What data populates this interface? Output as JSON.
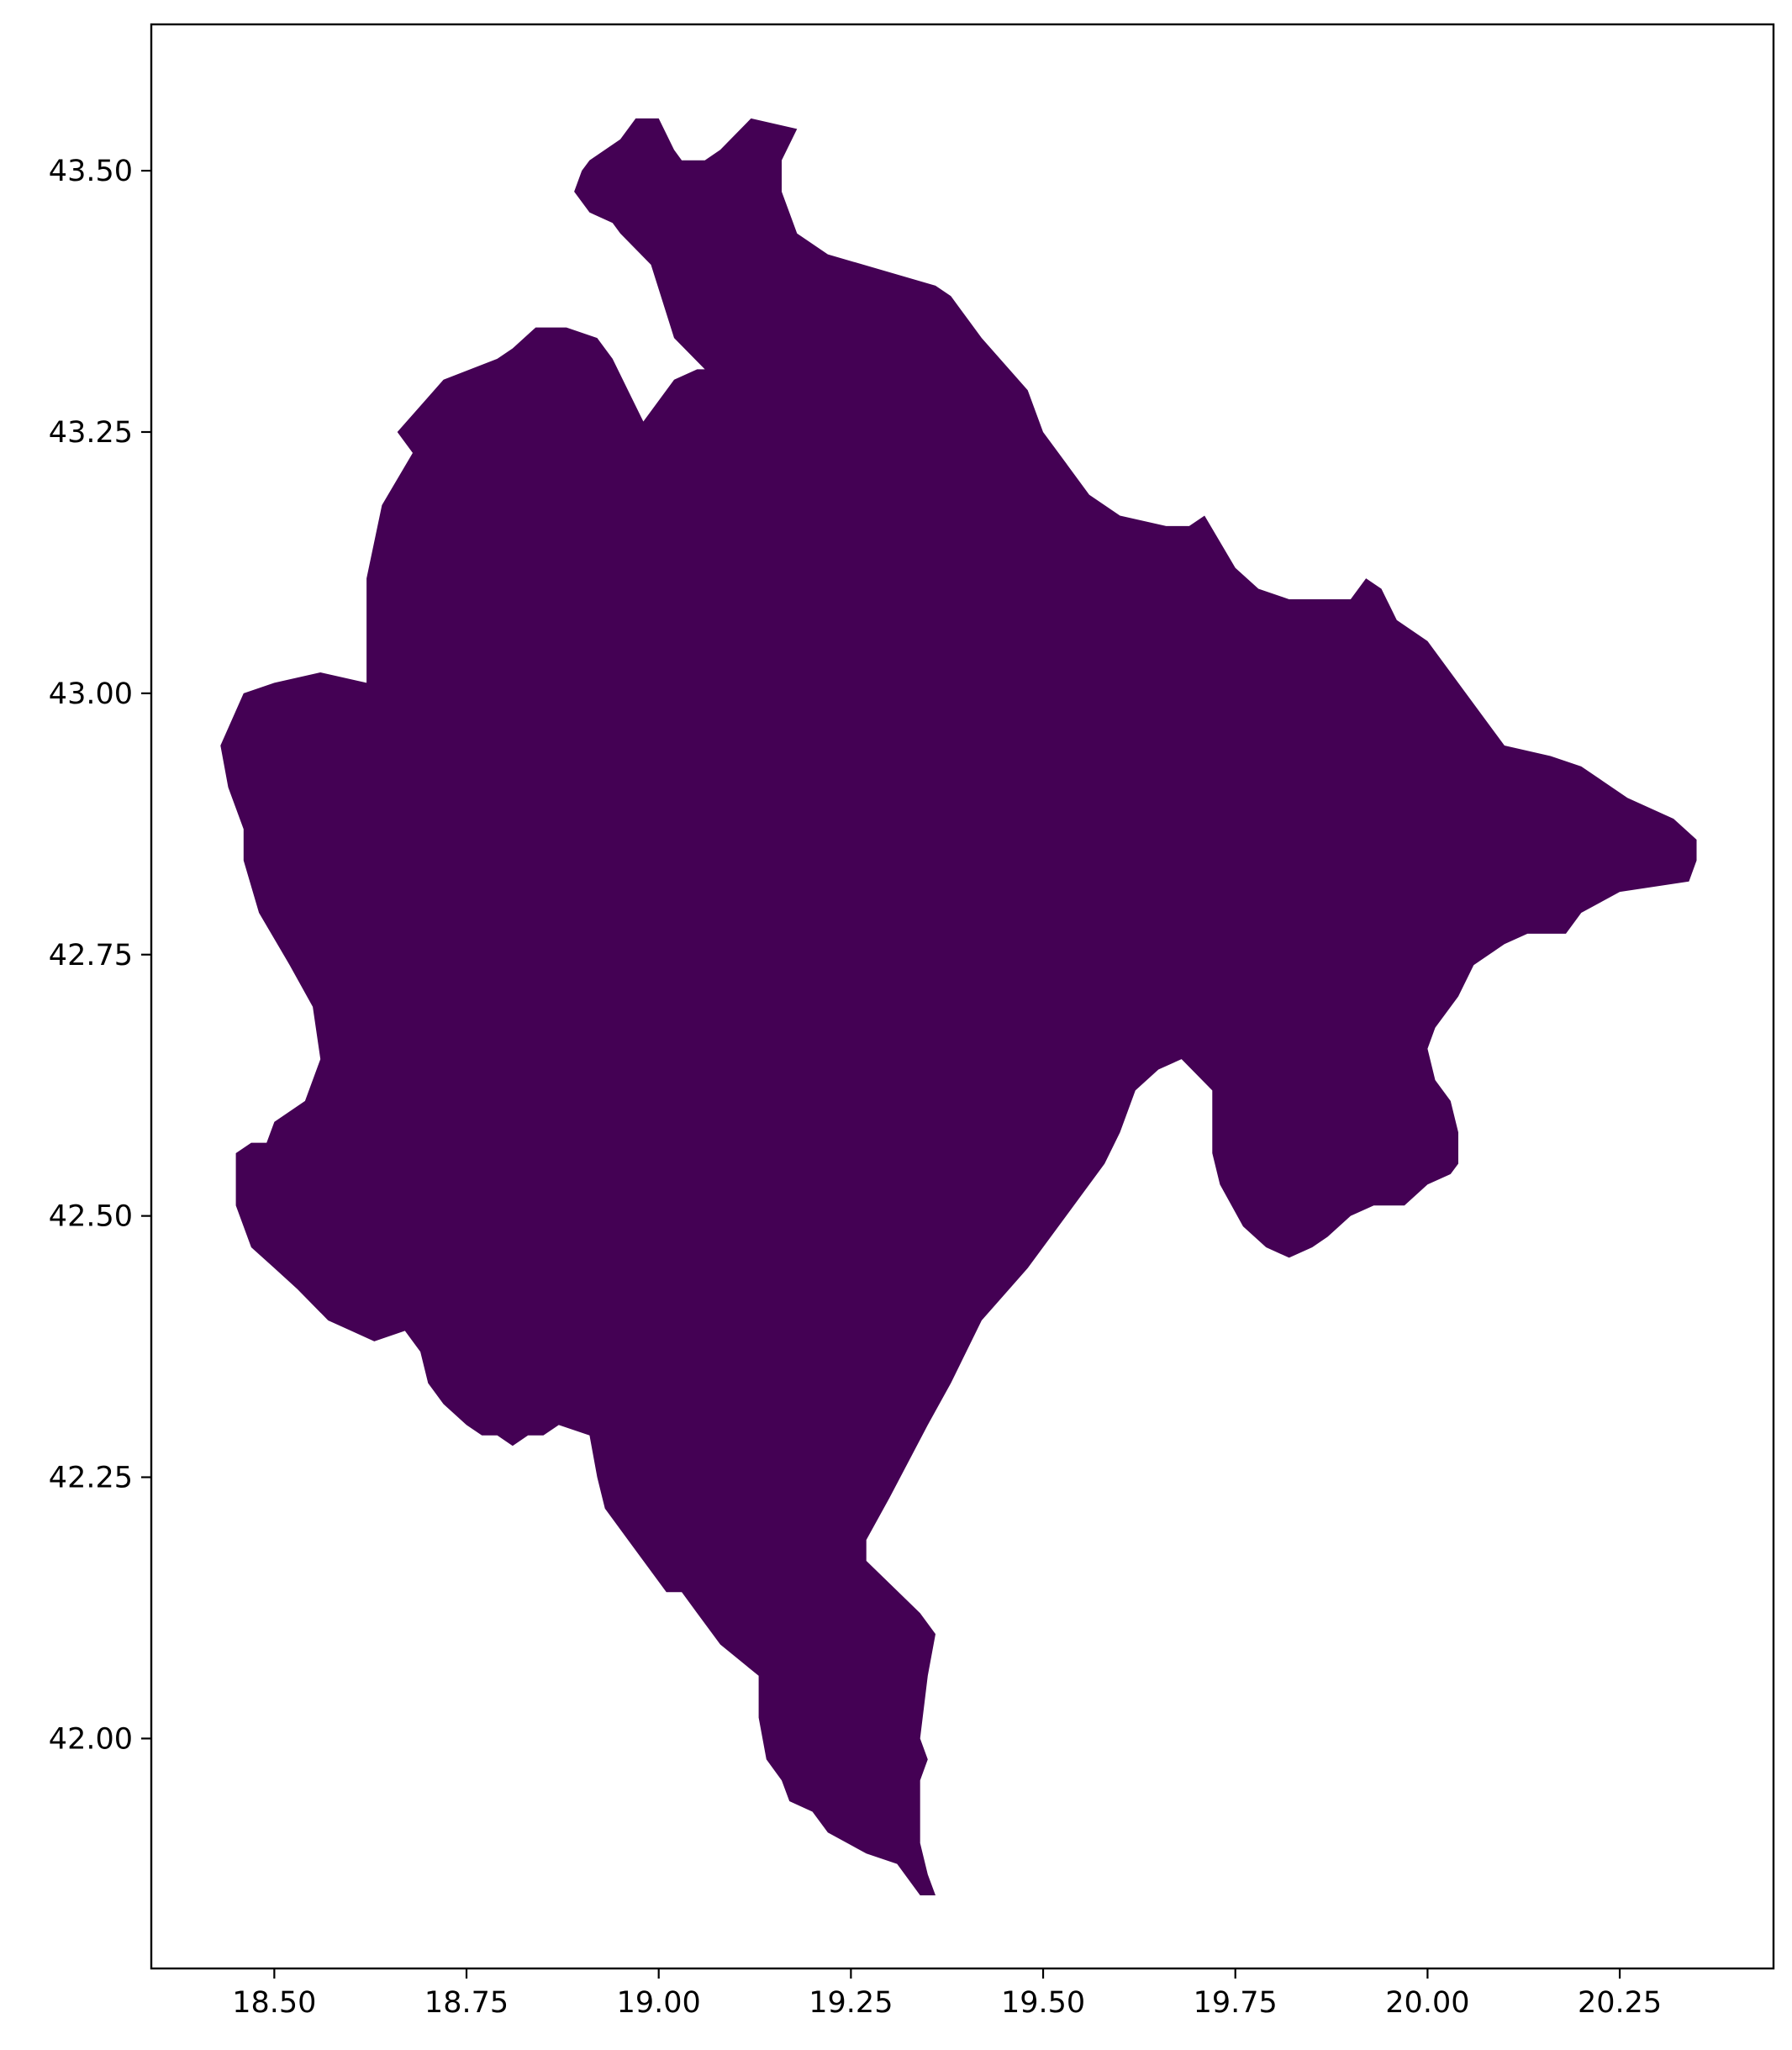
{
  "chart_data": {
    "type": "map",
    "title": "",
    "xlabel": "",
    "ylabel": "",
    "xlim": [
      18.34,
      20.45
    ],
    "ylim": [
      41.78,
      43.64
    ],
    "x_ticks": [
      18.5,
      18.75,
      19.0,
      19.25,
      19.5,
      19.75,
      20.0,
      20.25
    ],
    "x_tick_labels": [
      "18.50",
      "18.75",
      "19.00",
      "19.25",
      "19.50",
      "19.75",
      "20.00",
      "20.25"
    ],
    "y_ticks": [
      42.0,
      42.25,
      42.5,
      42.75,
      43.0,
      43.25,
      43.5
    ],
    "y_tick_labels": [
      "42.00",
      "42.25",
      "42.50",
      "42.75",
      "43.00",
      "43.25",
      "43.50"
    ],
    "grid": false,
    "legend": "none",
    "fill_color": "#440154",
    "polygon": [
      [
        18.91,
        43.51
      ],
      [
        18.93,
        43.52
      ],
      [
        18.95,
        43.53
      ],
      [
        18.97,
        43.55
      ],
      [
        19.0,
        43.55
      ],
      [
        19.02,
        43.52
      ],
      [
        19.03,
        43.51
      ],
      [
        19.06,
        43.51
      ],
      [
        19.08,
        43.52
      ],
      [
        19.12,
        43.55
      ],
      [
        19.18,
        43.54
      ],
      [
        19.16,
        43.51
      ],
      [
        19.16,
        43.48
      ],
      [
        19.18,
        43.44
      ],
      [
        19.22,
        43.42
      ],
      [
        19.36,
        43.39
      ],
      [
        19.38,
        43.38
      ],
      [
        19.42,
        43.34
      ],
      [
        19.48,
        43.29
      ],
      [
        19.5,
        43.25
      ],
      [
        19.53,
        43.22
      ],
      [
        19.56,
        43.19
      ],
      [
        19.6,
        43.17
      ],
      [
        19.66,
        43.16
      ],
      [
        19.69,
        43.16
      ],
      [
        19.71,
        43.17
      ],
      [
        19.75,
        43.12
      ],
      [
        19.78,
        43.1
      ],
      [
        19.82,
        43.09
      ],
      [
        19.9,
        43.09
      ],
      [
        19.92,
        43.11
      ],
      [
        19.94,
        43.1
      ],
      [
        19.96,
        43.07
      ],
      [
        20.0,
        43.05
      ],
      [
        20.05,
        43.0
      ],
      [
        20.1,
        42.95
      ],
      [
        20.16,
        42.94
      ],
      [
        20.2,
        42.93
      ],
      [
        20.26,
        42.9
      ],
      [
        20.32,
        42.88
      ],
      [
        20.35,
        42.86
      ],
      [
        20.35,
        42.84
      ],
      [
        20.34,
        42.82
      ],
      [
        20.25,
        42.81
      ],
      [
        20.2,
        42.79
      ],
      [
        20.18,
        42.77
      ],
      [
        20.13,
        42.77
      ],
      [
        20.1,
        42.76
      ],
      [
        20.08,
        42.75
      ],
      [
        20.06,
        42.74
      ],
      [
        20.04,
        42.71
      ],
      [
        20.01,
        42.68
      ],
      [
        20.0,
        42.66
      ],
      [
        20.01,
        42.63
      ],
      [
        20.03,
        42.61
      ],
      [
        20.04,
        42.58
      ],
      [
        20.04,
        42.55
      ],
      [
        20.03,
        42.54
      ],
      [
        20.0,
        42.53
      ],
      [
        19.97,
        42.51
      ],
      [
        19.93,
        42.51
      ],
      [
        19.9,
        42.5
      ],
      [
        19.87,
        42.48
      ],
      [
        19.85,
        42.47
      ],
      [
        19.82,
        42.46
      ],
      [
        19.79,
        42.47
      ],
      [
        19.76,
        42.49
      ],
      [
        19.73,
        42.53
      ],
      [
        19.72,
        42.56
      ],
      [
        19.72,
        42.59
      ],
      [
        19.72,
        42.62
      ],
      [
        19.68,
        42.65
      ],
      [
        19.65,
        42.64
      ],
      [
        19.62,
        42.62
      ],
      [
        19.6,
        42.58
      ],
      [
        19.58,
        42.55
      ],
      [
        19.55,
        42.52
      ],
      [
        19.52,
        42.49
      ],
      [
        19.48,
        42.45
      ],
      [
        19.42,
        42.4
      ],
      [
        19.38,
        42.34
      ],
      [
        19.35,
        42.3
      ],
      [
        19.3,
        42.23
      ],
      [
        19.27,
        42.19
      ],
      [
        19.27,
        42.17
      ],
      [
        19.34,
        42.12
      ],
      [
        19.36,
        42.1
      ],
      [
        19.35,
        42.06
      ],
      [
        19.34,
        42.0
      ],
      [
        19.35,
        41.98
      ],
      [
        19.34,
        41.96
      ],
      [
        19.34,
        41.9
      ],
      [
        19.35,
        41.87
      ],
      [
        19.36,
        41.85
      ],
      [
        19.34,
        41.85
      ],
      [
        19.31,
        41.88
      ],
      [
        19.27,
        41.89
      ],
      [
        19.22,
        41.91
      ],
      [
        19.2,
        41.93
      ],
      [
        19.17,
        41.94
      ],
      [
        19.16,
        41.96
      ],
      [
        19.14,
        41.98
      ],
      [
        19.13,
        42.02
      ],
      [
        19.13,
        42.06
      ],
      [
        19.08,
        42.09
      ],
      [
        19.05,
        42.12
      ],
      [
        19.03,
        42.14
      ],
      [
        19.01,
        42.14
      ],
      [
        18.98,
        42.17
      ],
      [
        18.96,
        42.19
      ],
      [
        18.93,
        42.22
      ],
      [
        18.92,
        42.25
      ],
      [
        18.91,
        42.29
      ],
      [
        18.87,
        42.3
      ],
      [
        18.85,
        42.29
      ],
      [
        18.83,
        42.29
      ],
      [
        18.81,
        42.28
      ],
      [
        18.79,
        42.29
      ],
      [
        18.77,
        42.29
      ],
      [
        18.75,
        42.3
      ],
      [
        18.72,
        42.32
      ],
      [
        18.7,
        42.34
      ],
      [
        18.69,
        42.37
      ],
      [
        18.67,
        42.39
      ],
      [
        18.63,
        42.38
      ],
      [
        18.6,
        42.39
      ],
      [
        18.57,
        42.4
      ],
      [
        18.53,
        42.43
      ],
      [
        18.5,
        42.45
      ],
      [
        18.47,
        42.47
      ],
      [
        18.45,
        42.51
      ],
      [
        18.45,
        42.56
      ],
      [
        18.47,
        42.57
      ],
      [
        18.49,
        42.57
      ],
      [
        18.5,
        42.59
      ],
      [
        18.54,
        42.61
      ],
      [
        18.56,
        42.65
      ],
      [
        18.55,
        42.7
      ],
      [
        18.52,
        42.74
      ],
      [
        18.48,
        42.79
      ],
      [
        18.46,
        42.84
      ],
      [
        18.46,
        42.87
      ],
      [
        18.44,
        42.91
      ],
      [
        18.43,
        42.95
      ],
      [
        18.46,
        43.0
      ],
      [
        18.5,
        43.01
      ],
      [
        18.56,
        43.02
      ],
      [
        18.62,
        43.01
      ],
      [
        18.62,
        43.07
      ],
      [
        18.62,
        43.11
      ],
      [
        18.64,
        43.18
      ],
      [
        18.68,
        43.23
      ],
      [
        18.66,
        43.25
      ],
      [
        18.72,
        43.3
      ],
      [
        18.79,
        43.32
      ],
      [
        18.81,
        43.33
      ],
      [
        18.84,
        43.35
      ],
      [
        18.88,
        43.35
      ],
      [
        18.92,
        43.34
      ],
      [
        18.94,
        43.32
      ],
      [
        18.96,
        43.29
      ],
      [
        18.98,
        43.26
      ],
      [
        19.02,
        43.3
      ],
      [
        19.05,
        43.31
      ],
      [
        19.06,
        43.31
      ],
      [
        19.02,
        43.34
      ],
      [
        18.99,
        43.41
      ],
      [
        18.95,
        43.44
      ],
      [
        18.94,
        43.45
      ],
      [
        18.91,
        43.46
      ],
      [
        18.89,
        43.48
      ],
      [
        18.9,
        43.5
      ]
    ]
  }
}
